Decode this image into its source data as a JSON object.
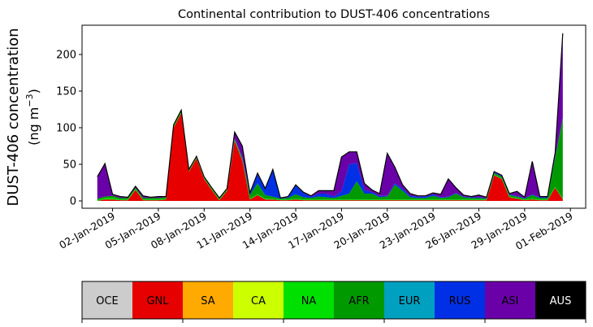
{
  "chart_data": {
    "type": "area",
    "title": "Continental contribution to DUST-406 concentrations",
    "ylabel_line1": "DUST-406 concentration",
    "ylabel_line2": "(ng m",
    "ylabel_unit_exp": "−3",
    "ylabel_close": ")",
    "xlabel": "",
    "ylim": [
      -10,
      240
    ],
    "y_ticks": [
      0,
      50,
      100,
      150,
      200
    ],
    "x_start": "2018-12-31",
    "x_end": "2019-02-02",
    "x_ticks": [
      {
        "date": "2019-01-02",
        "label": "02-Jan-2019"
      },
      {
        "date": "2019-01-05",
        "label": "05-Jan-2019"
      },
      {
        "date": "2019-01-08",
        "label": "08-Jan-2019"
      },
      {
        "date": "2019-01-11",
        "label": "11-Jan-2019"
      },
      {
        "date": "2019-01-14",
        "label": "14-Jan-2019"
      },
      {
        "date": "2019-01-17",
        "label": "17-Jan-2019"
      },
      {
        "date": "2019-01-20",
        "label": "20-Jan-2019"
      },
      {
        "date": "2019-01-23",
        "label": "23-Jan-2019"
      },
      {
        "date": "2019-01-26",
        "label": "26-Jan-2019"
      },
      {
        "date": "2019-01-29",
        "label": "29-Jan-2019"
      },
      {
        "date": "2019-02-01",
        "label": "01-Feb-2019"
      }
    ],
    "dates": [
      "2019-01-01T00:00",
      "2019-01-01T12:00",
      "2019-01-02T00:00",
      "2019-01-02T12:00",
      "2019-01-03T00:00",
      "2019-01-03T12:00",
      "2019-01-04T00:00",
      "2019-01-04T12:00",
      "2019-01-05T00:00",
      "2019-01-05T12:00",
      "2019-01-06T00:00",
      "2019-01-06T12:00",
      "2019-01-07T00:00",
      "2019-01-07T12:00",
      "2019-01-08T00:00",
      "2019-01-08T12:00",
      "2019-01-09T00:00",
      "2019-01-09T12:00",
      "2019-01-10T00:00",
      "2019-01-10T12:00",
      "2019-01-11T00:00",
      "2019-01-11T12:00",
      "2019-01-12T00:00",
      "2019-01-12T12:00",
      "2019-01-13T00:00",
      "2019-01-13T12:00",
      "2019-01-14T00:00",
      "2019-01-14T12:00",
      "2019-01-15T00:00",
      "2019-01-15T12:00",
      "2019-01-16T00:00",
      "2019-01-16T12:00",
      "2019-01-17T00:00",
      "2019-01-17T12:00",
      "2019-01-18T00:00",
      "2019-01-18T12:00",
      "2019-01-19T00:00",
      "2019-01-19T12:00",
      "2019-01-20T00:00",
      "2019-01-20T12:00",
      "2019-01-21T00:00",
      "2019-01-21T12:00",
      "2019-01-22T00:00",
      "2019-01-22T12:00",
      "2019-01-23T00:00",
      "2019-01-23T12:00",
      "2019-01-24T00:00",
      "2019-01-24T12:00",
      "2019-01-25T00:00",
      "2019-01-25T12:00",
      "2019-01-26T00:00",
      "2019-01-26T12:00",
      "2019-01-27T00:00",
      "2019-01-27T12:00",
      "2019-01-28T00:00",
      "2019-01-28T12:00",
      "2019-01-29T00:00",
      "2019-01-29T12:00",
      "2019-01-30T00:00",
      "2019-01-30T12:00",
      "2019-01-31T00:00",
      "2019-01-31T12:00"
    ],
    "series": [
      {
        "name": "OCE",
        "color": "#cccccc",
        "values": [
          0,
          0,
          0,
          0,
          0,
          0,
          0,
          0,
          0,
          0,
          0,
          0,
          0,
          0,
          0,
          0,
          0,
          0,
          0,
          0,
          0,
          0,
          0,
          0,
          0,
          0,
          0,
          0,
          0,
          0,
          0,
          0,
          0,
          0,
          0,
          0,
          0,
          0,
          0,
          0,
          0,
          0,
          0,
          0,
          0,
          0,
          0,
          0,
          0,
          0,
          0,
          0,
          0,
          0,
          0,
          0,
          0,
          0,
          0,
          0,
          0,
          0
        ]
      },
      {
        "name": "GNL",
        "color": "#e60000",
        "values": [
          0,
          2,
          2,
          1,
          1,
          15,
          1,
          1,
          1,
          2,
          100,
          120,
          40,
          58,
          30,
          15,
          1,
          14,
          82,
          55,
          2,
          8,
          2,
          2,
          1,
          1,
          2,
          1,
          1,
          1,
          1,
          1,
          1,
          1,
          1,
          1,
          1,
          1,
          1,
          1,
          1,
          1,
          1,
          1,
          1,
          1,
          1,
          1,
          1,
          1,
          1,
          1,
          35,
          30,
          5,
          3,
          1,
          2,
          1,
          1,
          18,
          2
        ]
      },
      {
        "name": "SA",
        "color": "#ffaa00",
        "values": [
          0,
          0,
          0,
          0,
          0,
          0,
          0,
          0,
          0,
          0,
          0,
          0,
          0,
          0,
          0,
          0,
          0,
          0,
          0,
          0,
          0,
          0,
          0,
          0,
          0,
          0,
          0,
          0,
          0,
          0,
          0,
          0,
          0,
          0,
          0,
          0,
          0,
          0,
          0,
          0,
          0,
          0,
          0,
          0,
          0,
          0,
          0,
          0,
          0,
          0,
          0,
          0,
          0,
          0,
          0,
          0,
          0,
          0,
          0,
          0,
          0,
          0
        ]
      },
      {
        "name": "CA",
        "color": "#ccff00",
        "values": [
          0,
          0,
          0,
          0,
          0,
          0,
          0,
          0,
          0,
          0,
          0,
          0,
          0,
          0,
          0,
          0,
          0,
          0,
          0,
          0,
          0,
          0,
          0,
          0,
          0,
          0,
          0,
          0,
          0,
          0,
          0,
          0,
          0,
          0,
          0,
          0,
          0,
          0,
          0,
          0,
          0,
          0,
          0,
          0,
          0,
          0,
          0,
          0,
          0,
          0,
          0,
          0,
          0,
          0,
          0,
          0,
          0,
          0,
          0,
          0,
          0,
          0
        ]
      },
      {
        "name": "NA",
        "color": "#00e000",
        "values": [
          1,
          2,
          2,
          1,
          1,
          1,
          1,
          1,
          1,
          1,
          1,
          1,
          1,
          1,
          1,
          1,
          1,
          1,
          1,
          1,
          1,
          1,
          1,
          1,
          1,
          1,
          1,
          1,
          1,
          1,
          1,
          1,
          1,
          1,
          1,
          1,
          1,
          1,
          1,
          1,
          1,
          1,
          1,
          1,
          1,
          1,
          1,
          1,
          1,
          1,
          1,
          1,
          1,
          1,
          1,
          1,
          1,
          1,
          1,
          1,
          1,
          1
        ]
      },
      {
        "name": "AFR",
        "color": "#009a00",
        "values": [
          2,
          2,
          3,
          2,
          2,
          2,
          2,
          2,
          2,
          2,
          2,
          2,
          1,
          1,
          1,
          1,
          1,
          1,
          2,
          2,
          5,
          15,
          5,
          3,
          1,
          2,
          6,
          3,
          2,
          4,
          3,
          2,
          5,
          8,
          25,
          8,
          8,
          3,
          4,
          20,
          12,
          3,
          2,
          2,
          5,
          2,
          3,
          8,
          3,
          2,
          2,
          1,
          2,
          2,
          2,
          2,
          1,
          5,
          2,
          2,
          40,
          110
        ]
      },
      {
        "name": "EUR",
        "color": "#00a0c0",
        "values": [
          0,
          0,
          0,
          0,
          0,
          0,
          0,
          0,
          0,
          0,
          0,
          0,
          0,
          0,
          0,
          0,
          0,
          0,
          0,
          0,
          0,
          0,
          0,
          0,
          0,
          0,
          0,
          0,
          0,
          0,
          0,
          0,
          0,
          0,
          0,
          0,
          0,
          0,
          0,
          0,
          0,
          0,
          0,
          0,
          0,
          0,
          0,
          0,
          0,
          0,
          0,
          0,
          0,
          0,
          0,
          0,
          0,
          0,
          0,
          0,
          0,
          0
        ]
      },
      {
        "name": "RUS",
        "color": "#0030e6",
        "values": [
          0,
          0,
          0,
          0,
          0,
          0,
          0,
          0,
          0,
          0,
          0,
          0,
          0,
          0,
          0,
          0,
          0,
          0,
          0,
          2,
          2,
          12,
          8,
          36,
          0,
          1,
          12,
          6,
          2,
          4,
          5,
          2,
          6,
          40,
          25,
          5,
          2,
          2,
          1,
          2,
          3,
          2,
          2,
          2,
          2,
          1,
          1,
          1,
          1,
          1,
          1,
          1,
          1,
          1,
          1,
          1,
          1,
          1,
          1,
          1,
          1,
          1
        ]
      },
      {
        "name": "ASI",
        "color": "#6a00a8",
        "values": [
          30,
          45,
          2,
          2,
          1,
          2,
          3,
          1,
          2,
          1,
          1,
          1,
          1,
          1,
          1,
          1,
          1,
          1,
          9,
          15,
          1,
          2,
          1,
          1,
          1,
          1,
          1,
          1,
          1,
          4,
          4,
          8,
          47,
          17,
          15,
          9,
          3,
          3,
          58,
          22,
          5,
          3,
          1,
          1,
          2,
          4,
          24,
          7,
          2,
          1,
          3,
          1,
          1,
          1,
          1,
          6,
          1,
          45,
          1,
          1,
          6,
          115
        ]
      },
      {
        "name": "AUS",
        "color": "#000000",
        "values": [
          0,
          0,
          0,
          0,
          0,
          0,
          0,
          0,
          0,
          0,
          0,
          0,
          0,
          0,
          0,
          0,
          0,
          0,
          0,
          0,
          0,
          0,
          0,
          0,
          0,
          0,
          0,
          0,
          0,
          0,
          0,
          0,
          0,
          0,
          0,
          0,
          0,
          0,
          0,
          0,
          0,
          0,
          0,
          0,
          0,
          0,
          0,
          0,
          0,
          0,
          0,
          0,
          0,
          0,
          0,
          0,
          0,
          0,
          0,
          0,
          0,
          0
        ]
      }
    ]
  }
}
